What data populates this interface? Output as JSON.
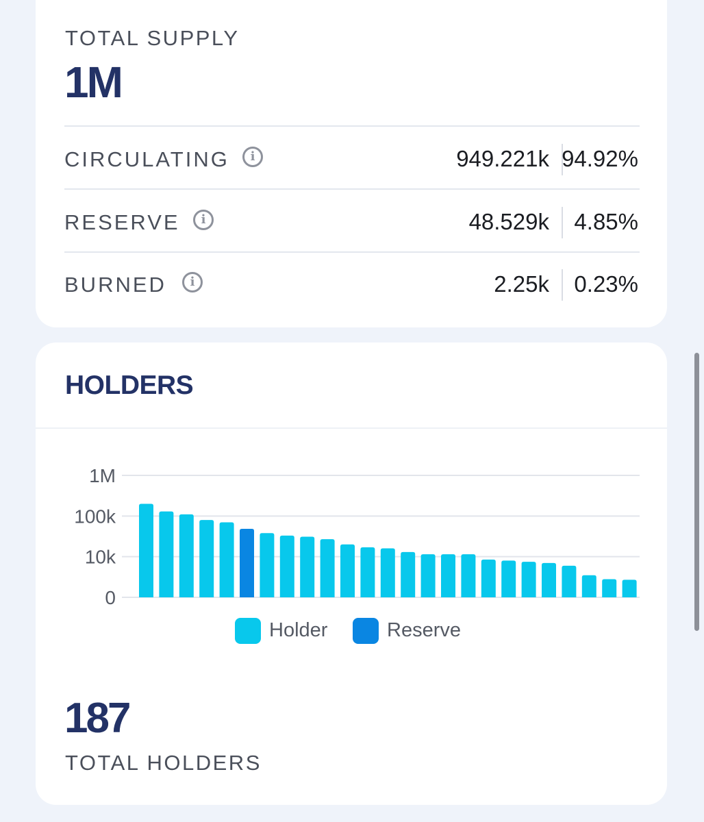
{
  "supply": {
    "title": "TOTAL SUPPLY",
    "value": "1M",
    "rows": [
      {
        "label": "CIRCULATING",
        "amount": "949.221k",
        "percent": "94.92%"
      },
      {
        "label": "RESERVE",
        "amount": "48.529k",
        "percent": "4.85%"
      },
      {
        "label": "BURNED",
        "amount": "2.25k",
        "percent": "0.23%"
      }
    ],
    "info_glyph": "i"
  },
  "holders": {
    "title": "HOLDERS",
    "total_value": "187",
    "total_label": "TOTAL HOLDERS"
  },
  "colors": {
    "holder": "#08c8ec",
    "reserve": "#0a86e2",
    "brand": "#233266"
  },
  "chart_data": {
    "type": "bar",
    "title": "",
    "xlabel": "",
    "ylabel": "",
    "y_scale": "log",
    "ylim": [
      1,
      1000000
    ],
    "y_ticks": [
      "1M",
      "100k",
      "10k",
      "0"
    ],
    "grid": true,
    "legend_position": "bottom",
    "series": [
      {
        "name": "Holder",
        "color": "#08c8ec"
      },
      {
        "name": "Reserve",
        "color": "#0a86e2"
      }
    ],
    "values": [
      200000,
      130000,
      110000,
      80000,
      70000,
      48529,
      38000,
      33000,
      31000,
      27000,
      20000,
      17000,
      16000,
      13000,
      11500,
      11500,
      11500,
      8500,
      8000,
      7500,
      7000,
      6000,
      3500,
      2800,
      2700
    ],
    "bar_series": [
      "Holder",
      "Holder",
      "Holder",
      "Holder",
      "Holder",
      "Reserve",
      "Holder",
      "Holder",
      "Holder",
      "Holder",
      "Holder",
      "Holder",
      "Holder",
      "Holder",
      "Holder",
      "Holder",
      "Holder",
      "Holder",
      "Holder",
      "Holder",
      "Holder",
      "Holder",
      "Holder",
      "Holder",
      "Holder"
    ]
  }
}
